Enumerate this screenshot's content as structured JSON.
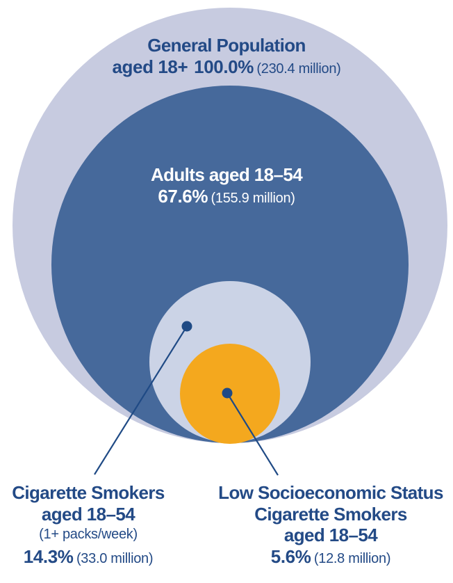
{
  "colors": {
    "general_population": "#c7cbe0",
    "adults_18_54": "#46699b",
    "cigarette_smokers": "#cbd3e6",
    "low_ses_smokers": "#f4a81e",
    "text_dark": "#234a86",
    "text_light": "#ffffff"
  },
  "groups": {
    "general_population": {
      "title": "General Population",
      "title_line2": "aged 18+",
      "percent": "100.0%",
      "millions": "(230.4 million)"
    },
    "adults_18_54": {
      "title": "Adults aged 18–54",
      "percent": "67.6%",
      "millions": "(155.9 million)"
    },
    "cigarette_smokers": {
      "title_line1": "Cigarette Smokers",
      "title_line2": "aged 18–54",
      "note": "(1+ packs/week)",
      "percent": "14.3%",
      "millions": "(33.0 million)"
    },
    "low_ses_smokers": {
      "title_line1": "Low Socioeconomic Status",
      "title_line2": "Cigarette Smokers",
      "title_line3": "aged 18–54",
      "percent": "5.6%",
      "millions": "(12.8 million)"
    }
  }
}
